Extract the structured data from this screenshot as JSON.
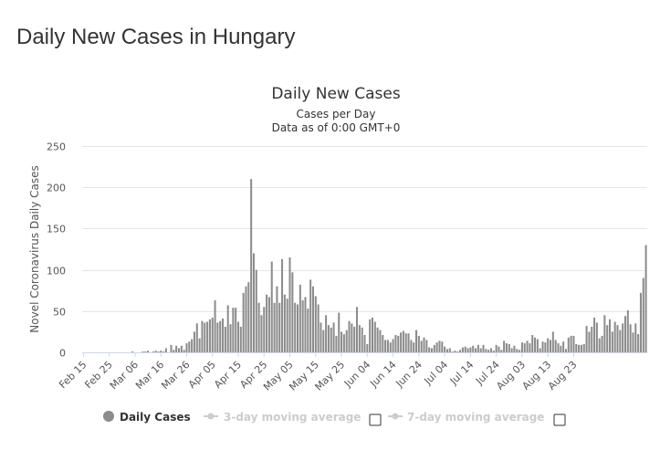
{
  "page": {
    "title": "Daily New Cases in Hungary"
  },
  "chart_data": {
    "type": "bar",
    "title": "Daily New Cases",
    "subtitle": [
      "Cases per Day",
      "Data as of 0:00 GMT+0"
    ],
    "ylabel": "Novel Coronavirus Daily Cases",
    "xlabel": "",
    "ylim": [
      0,
      250
    ],
    "yticks": [
      0,
      50,
      100,
      150,
      200,
      250
    ],
    "xtick_labels": [
      "Feb 15",
      "Feb 25",
      "Mar 06",
      "Mar 16",
      "Mar 26",
      "Apr 05",
      "Apr 15",
      "Apr 25",
      "May 05",
      "May 15",
      "May 25",
      "Jun 04",
      "Jun 14",
      "Jun 24",
      "Jul 04",
      "Jul 14",
      "Jul 24",
      "Aug 03",
      "Aug 13",
      "Aug 23"
    ],
    "start_date": "Feb 15",
    "series": [
      {
        "name": "Daily Cases",
        "color": "#8c8c8c",
        "values": [
          0,
          0,
          0,
          0,
          0,
          0,
          0,
          0,
          0,
          0,
          0,
          0,
          0,
          0,
          0,
          0,
          0,
          0,
          0,
          1,
          0,
          0,
          0,
          1,
          1,
          2,
          0,
          1,
          2,
          1,
          2,
          1,
          5,
          0,
          9,
          3,
          8,
          5,
          8,
          3,
          11,
          13,
          16,
          25,
          35,
          17,
          38,
          36,
          37,
          40,
          42,
          63,
          36,
          38,
          41,
          31,
          57,
          34,
          54,
          54,
          37,
          31,
          72,
          80,
          85,
          210,
          120,
          100,
          60,
          45,
          55,
          70,
          67,
          110,
          60,
          80,
          60,
          113,
          70,
          65,
          115,
          97,
          60,
          58,
          82,
          63,
          67,
          53,
          88,
          80,
          68,
          58,
          36,
          27,
          45,
          33,
          30,
          36,
          20,
          48,
          25,
          22,
          27,
          38,
          35,
          31,
          55,
          33,
          30,
          21,
          10,
          40,
          42,
          37,
          30,
          27,
          21,
          15,
          15,
          12,
          16,
          21,
          20,
          24,
          26,
          23,
          23,
          15,
          12,
          27,
          20,
          14,
          18,
          15,
          6,
          5,
          9,
          12,
          14,
          13,
          7,
          4,
          5,
          1,
          2,
          1,
          3,
          6,
          7,
          5,
          6,
          8,
          5,
          9,
          5,
          9,
          4,
          3,
          5,
          2,
          9,
          7,
          3,
          14,
          11,
          10,
          5,
          8,
          4,
          3,
          12,
          11,
          14,
          11,
          21,
          18,
          16,
          5,
          13,
          12,
          17,
          15,
          25,
          15,
          11,
          8,
          13,
          4,
          18,
          20,
          20,
          10,
          9,
          9,
          10,
          32,
          25,
          31,
          42,
          36,
          17,
          20,
          45,
          33,
          40,
          25,
          37,
          33,
          27,
          35,
          44,
          51,
          34,
          24,
          35,
          22,
          72,
          90,
          130
        ]
      }
    ],
    "legend": [
      {
        "label": "Daily Cases",
        "active": true
      },
      {
        "label": "3-day moving average",
        "active": false
      },
      {
        "label": "7-day moving average",
        "active": false
      }
    ]
  }
}
